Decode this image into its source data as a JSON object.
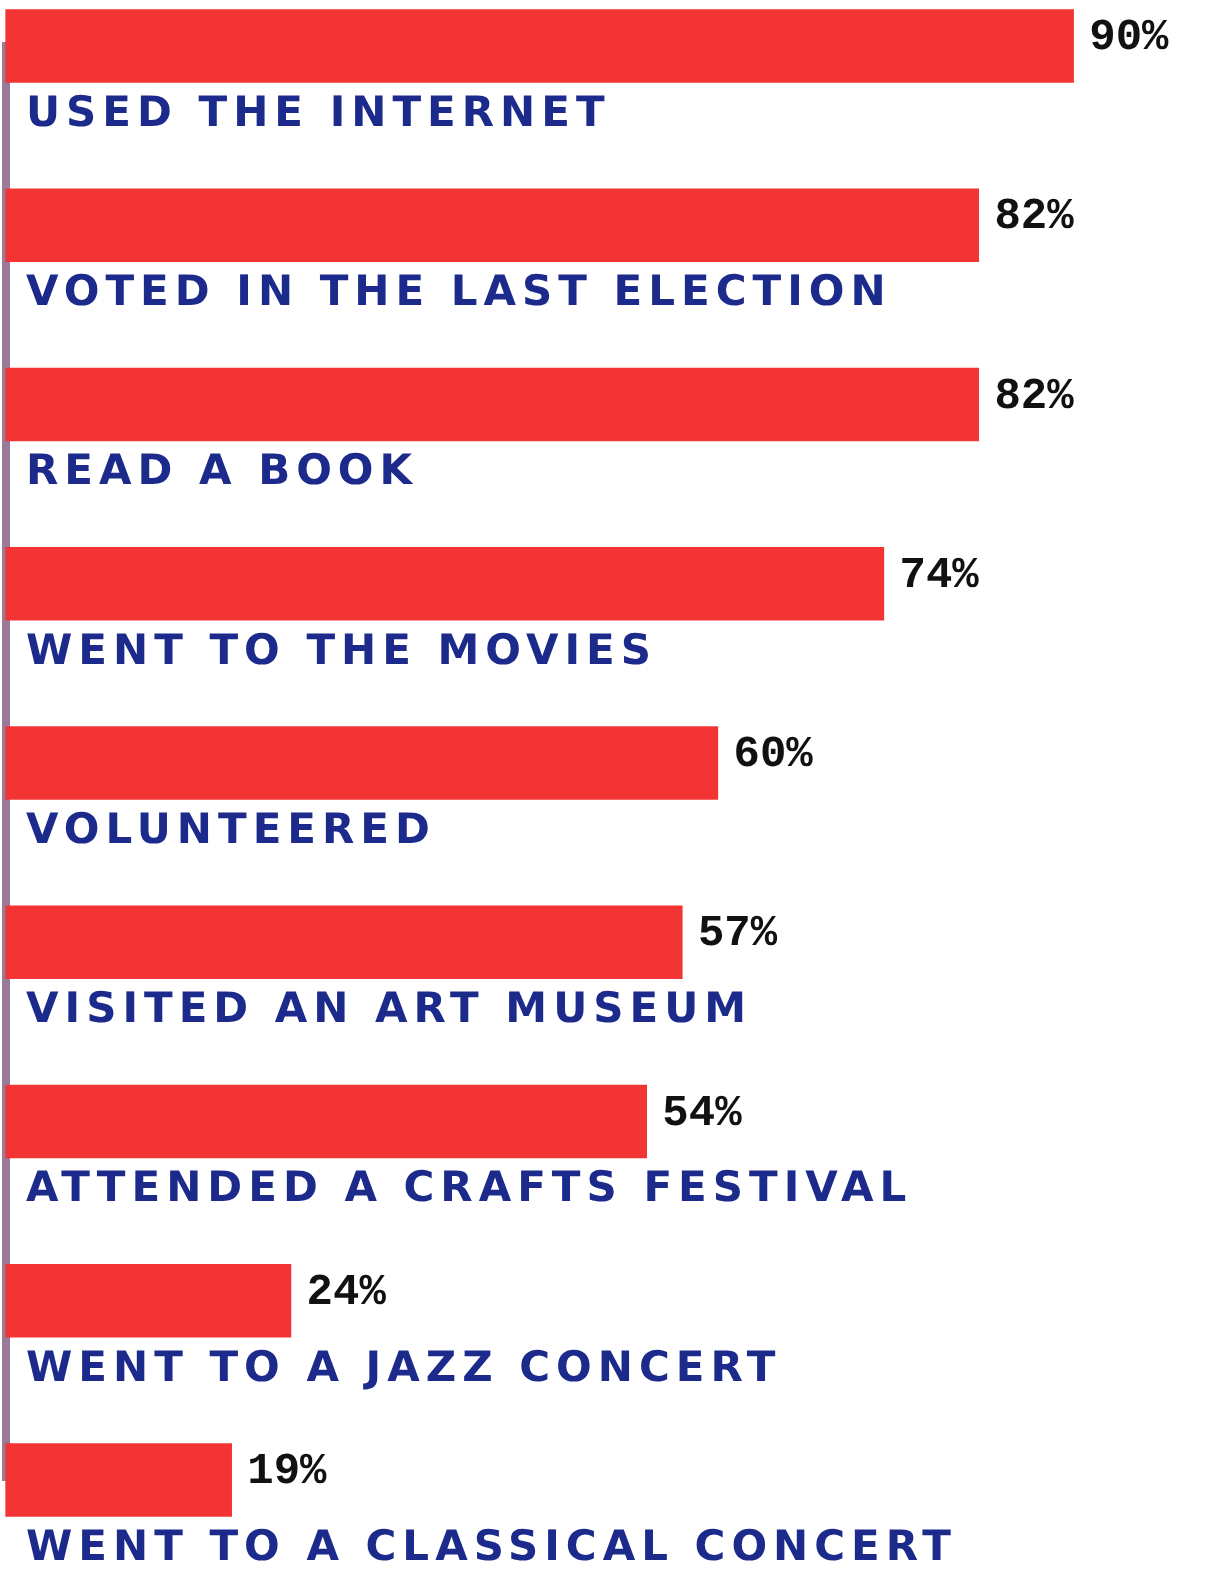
{
  "chart_data": {
    "type": "bar",
    "orientation": "horizontal",
    "categories": [
      "USED THE INTERNET",
      "VOTED IN THE LAST ELECTION",
      "READ A BOOK",
      "WENT TO THE MOVIES",
      "VOLUNTEERED",
      "VISITED AN ART MUSEUM",
      "ATTENDED A CRAFTS FESTIVAL",
      "WENT TO A JAZZ CONCERT",
      "WENT TO A CLASSICAL CONCERT"
    ],
    "values": [
      90,
      82,
      82,
      74,
      60,
      57,
      54,
      24,
      19
    ],
    "value_labels": [
      "90%",
      "82%",
      "82%",
      "74%",
      "60%",
      "57%",
      "54%",
      "24%",
      "19%"
    ],
    "color": "#f23434"
  }
}
